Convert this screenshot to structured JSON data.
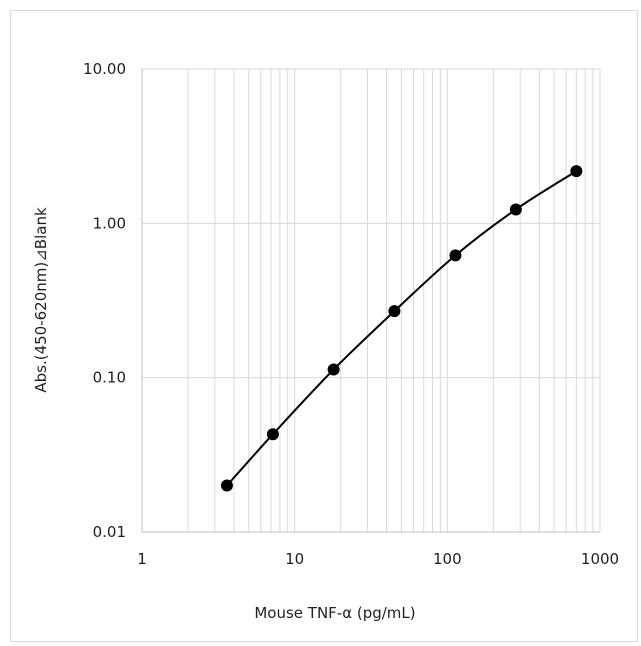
{
  "chart_data": {
    "type": "scatter",
    "title": "",
    "xlabel": "Mouse TNF-α (pg/mL)",
    "ylabel": "Abs.(450-620nm)⊿Blank",
    "x_scale": "log",
    "y_scale": "log",
    "xlim": [
      1,
      1000
    ],
    "ylim": [
      0.01,
      10
    ],
    "x_ticks": [
      "1",
      "10",
      "100",
      "1000"
    ],
    "y_ticks": [
      "0.01",
      "0.10",
      "1.00",
      "10.00"
    ],
    "grid": true,
    "legend": "none",
    "smooth_line": true,
    "series": [
      {
        "x": [
          3.6,
          7.2,
          18,
          45,
          113,
          281,
          700
        ],
        "y": [
          0.02,
          0.043,
          0.113,
          0.27,
          0.62,
          1.23,
          2.18
        ]
      }
    ],
    "colors": {
      "marker": "#000000",
      "line": "#000000",
      "grid": "#d9d9d9",
      "frame": "#d9d9d9"
    }
  }
}
